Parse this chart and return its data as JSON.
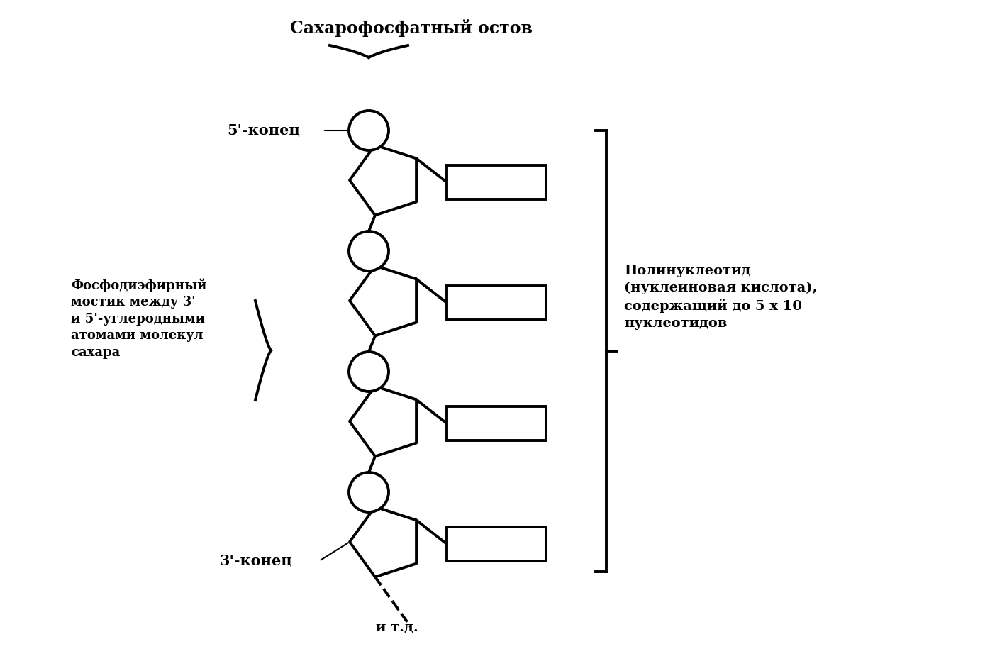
{
  "bg_color": "#ffffff",
  "title_backbone": "Сахарофосфатный остов",
  "label_5end": "5'-конец",
  "label_3end": "3'-конец",
  "label_itd": "и т.д.",
  "label_left_title": "Фосфодиэфирный\nмостик между 3'\nи 5'-углеродными\nатомами молекул\nсахара",
  "label_right_title": "Полинуклеотид\n(нуклеиновая кислота),\nсодержащий до 5 х 10\nнуклеотидов",
  "line_color": "#000000",
  "linewidth": 2.8
}
